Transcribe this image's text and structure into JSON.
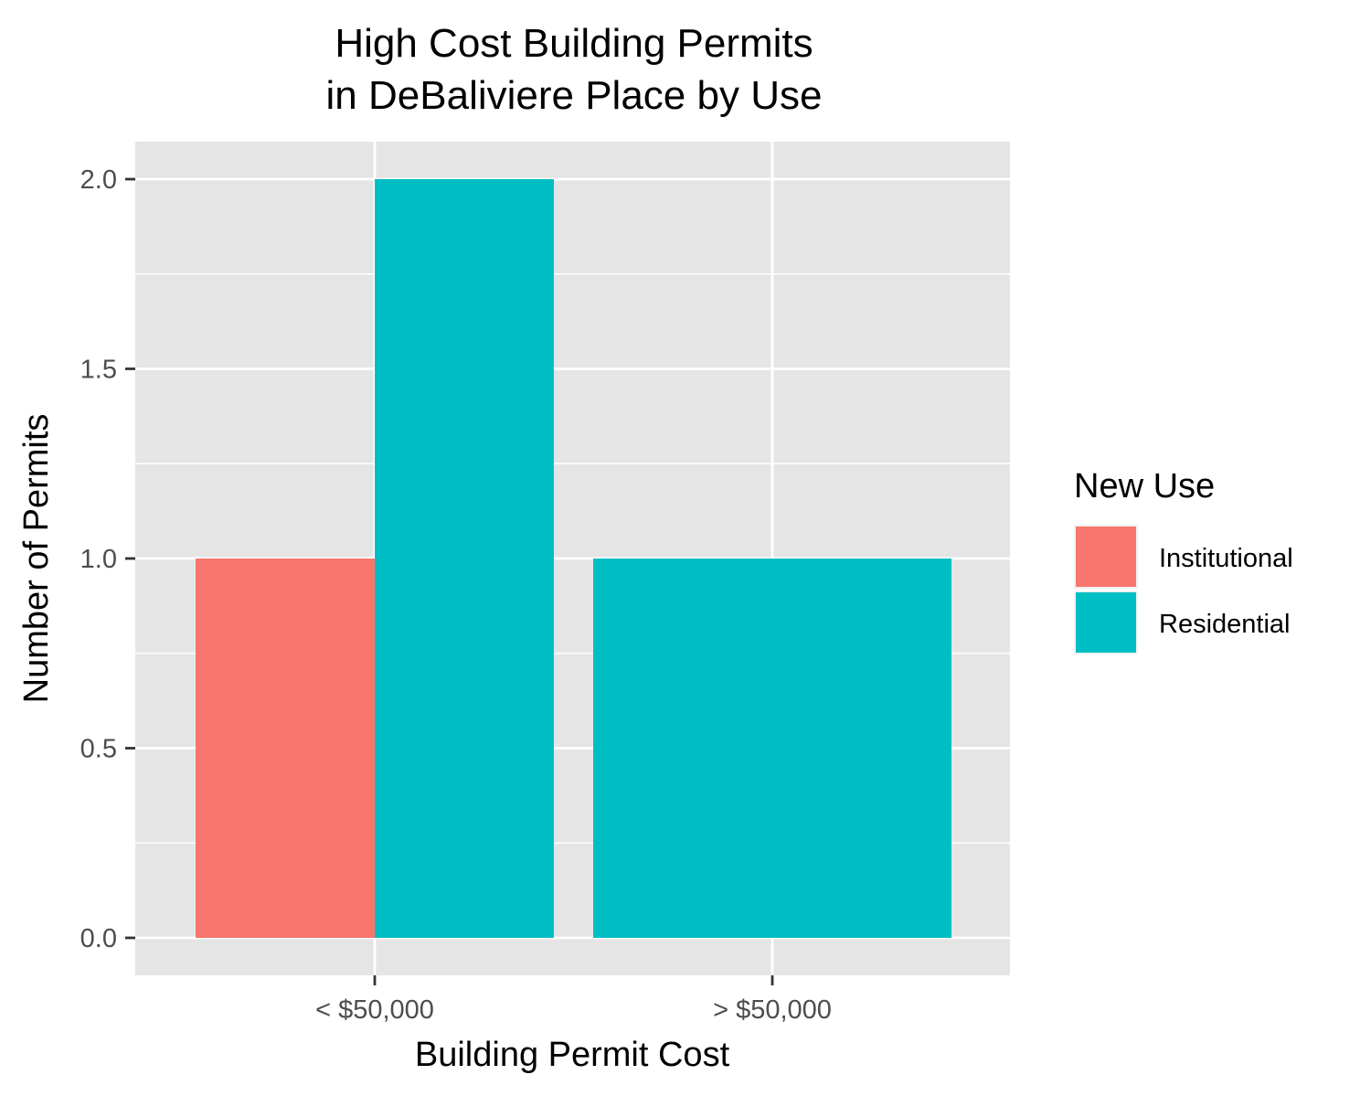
{
  "chart_data": {
    "type": "bar",
    "title_lines": [
      "High Cost Building Permits",
      "in DeBaliviere Place by Use"
    ],
    "xlabel": "Building Permit Cost",
    "ylabel": "Number of Permits",
    "categories": [
      "< $50,000",
      "> $50,000"
    ],
    "series": [
      {
        "name": "Institutional",
        "color": "#F8766D",
        "values": [
          1,
          null
        ]
      },
      {
        "name": "Residential",
        "color": "#00BFC4",
        "values": [
          2,
          1
        ]
      }
    ],
    "ylim": [
      0,
      2
    ],
    "yticks": [
      "0.0",
      "0.5",
      "1.0",
      "1.5",
      "2.0"
    ],
    "grid": true,
    "panel_background": "#E5E5E5",
    "legend": {
      "title": "New Use",
      "position": "right"
    }
  }
}
